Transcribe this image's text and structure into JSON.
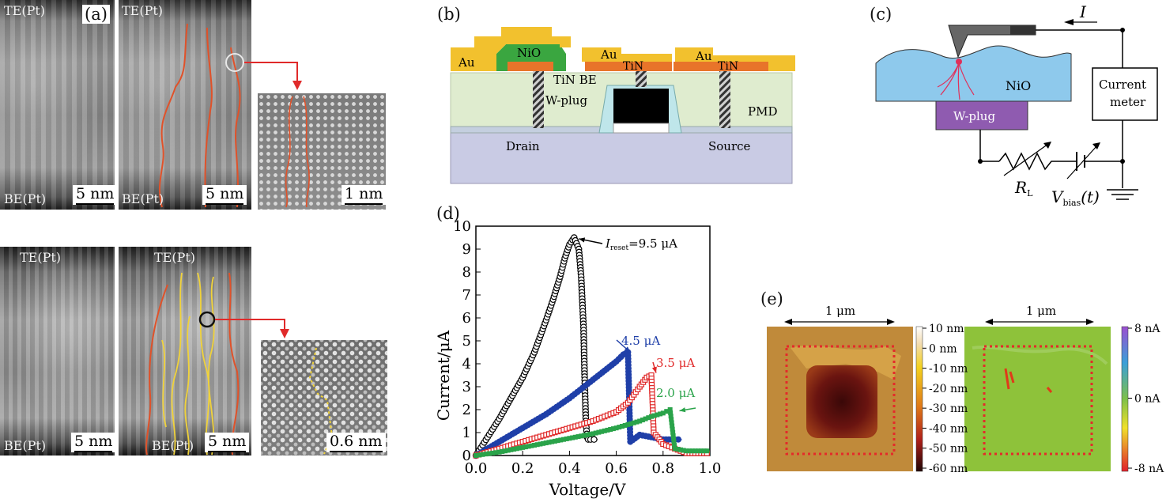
{
  "panel_a": {
    "letter": "(a)",
    "top_electrode": "TE(Pt)",
    "bottom_electrode": "BE(Pt)",
    "scale_5nm": "5 nm",
    "scale_1nm": "1 nm",
    "scale_06nm": "0.6 nm"
  },
  "panel_b": {
    "letter": "(b)",
    "labels": {
      "au": "Au",
      "nio": "NiO",
      "tin": "TiN",
      "tin_be": "TiN BE",
      "wplug": "W-plug",
      "pmd": "PMD",
      "drain": "Drain",
      "source": "Source"
    },
    "colors": {
      "au": "#f2c12e",
      "nio": "#3aa640",
      "tin": "#e8742a",
      "oxide": "#dfeccf",
      "substrate": "#c9cbe4",
      "gate": "#000000",
      "spacer": "#bfe6ea"
    }
  },
  "panel_c": {
    "letter": "(c)",
    "current_symbol": "I",
    "nio": "NiO",
    "wplug": "W-plug",
    "meter_line1": "Current",
    "meter_line2": "meter",
    "resistor": "R",
    "resistor_sub": "L",
    "bias": "V",
    "bias_sub": "bias",
    "bias_arg": "(t)",
    "colors": {
      "film": "#8ec9ec",
      "plug": "#8f5bb0",
      "filament": "#e0305a"
    }
  },
  "panel_d": {
    "letter": "(d)",
    "annotation_reset_prefix": "I",
    "annotation_reset_sub": "reset",
    "annotation_reset_value": "=9.5 μA",
    "annotations": [
      "4.5 μA",
      "3.5 μA",
      "2.0 μA"
    ]
  },
  "chart_data": {
    "type": "scatter",
    "xlabel": "Voltage/V",
    "ylabel": "Current/μA",
    "xlim": [
      0,
      1.0
    ],
    "ylim": [
      0,
      10
    ],
    "xticks": [
      "0.0",
      "0.2",
      "0.4",
      "0.6",
      "0.8",
      "1.0"
    ],
    "yticks": [
      "0",
      "1",
      "2",
      "3",
      "4",
      "5",
      "6",
      "7",
      "8",
      "9",
      "10"
    ],
    "series": [
      {
        "color": "#000000",
        "marker": "open-circle",
        "x": [
          0.0,
          0.05,
          0.1,
          0.15,
          0.2,
          0.25,
          0.3,
          0.33,
          0.36,
          0.38,
          0.4,
          0.42,
          0.44,
          0.45,
          0.46,
          0.465,
          0.47,
          0.475,
          0.48,
          0.49,
          0.52
        ],
        "y": [
          0.0,
          0.8,
          1.6,
          2.5,
          3.4,
          4.5,
          5.9,
          6.8,
          7.8,
          8.6,
          9.2,
          9.5,
          9.0,
          7.8,
          5.6,
          3.3,
          1.5,
          0.8,
          0.7,
          0.7,
          0.7
        ]
      },
      {
        "color": "#1f3fa8",
        "marker": "filled-circle",
        "x": [
          0.0,
          0.1,
          0.2,
          0.3,
          0.4,
          0.5,
          0.55,
          0.6,
          0.63,
          0.65,
          0.66,
          0.7,
          0.75,
          0.8,
          0.85,
          0.88
        ],
        "y": [
          0.0,
          0.6,
          1.2,
          1.8,
          2.5,
          3.3,
          3.7,
          4.1,
          4.4,
          4.5,
          0.6,
          0.9,
          0.8,
          0.7,
          0.7,
          0.7
        ]
      },
      {
        "color": "#e02a2a",
        "marker": "open-square",
        "x": [
          0.0,
          0.1,
          0.2,
          0.3,
          0.4,
          0.5,
          0.6,
          0.65,
          0.7,
          0.73,
          0.75,
          0.76,
          0.8,
          0.85,
          0.9,
          0.95,
          1.0
        ],
        "y": [
          0.0,
          0.3,
          0.6,
          0.9,
          1.2,
          1.5,
          1.9,
          2.3,
          3.0,
          3.4,
          3.5,
          1.0,
          0.5,
          0.3,
          0.1,
          0.1,
          0.1
        ]
      },
      {
        "color": "#2aa34a",
        "marker": "filled-square",
        "x": [
          0.0,
          0.1,
          0.2,
          0.3,
          0.4,
          0.5,
          0.6,
          0.7,
          0.75,
          0.8,
          0.83,
          0.85,
          0.9,
          0.95,
          1.0
        ],
        "y": [
          0.0,
          0.15,
          0.35,
          0.55,
          0.75,
          0.95,
          1.2,
          1.5,
          1.7,
          1.85,
          2.0,
          0.3,
          0.2,
          0.2,
          0.2
        ]
      }
    ]
  },
  "panel_e": {
    "letter": "(e)",
    "scan_size": "1 μm",
    "height_ticks": [
      "10 nm",
      "0 nm",
      "-10 nm",
      "-20 nm",
      "-30 nm",
      "-40 nm",
      "-50 nm",
      "-60 nm"
    ],
    "current_ticks": [
      "8 nA",
      "0 nA",
      "-8 nA"
    ]
  }
}
